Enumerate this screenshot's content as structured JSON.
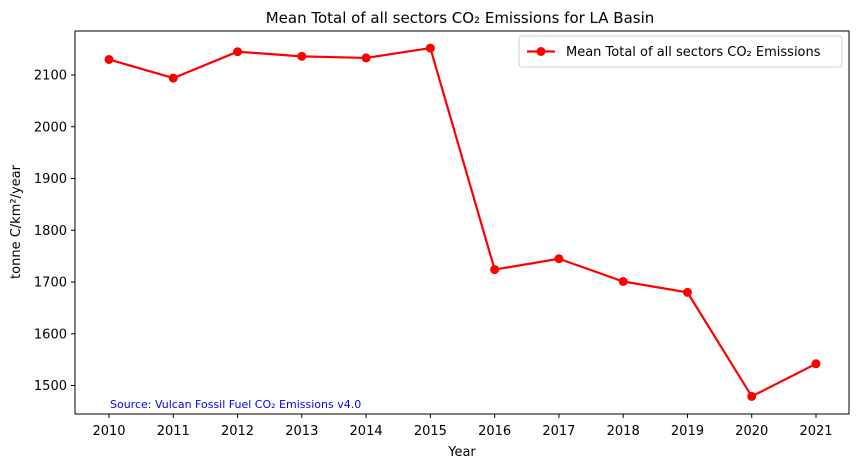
{
  "chart_data": {
    "type": "line",
    "title": "Mean Total of all sectors CO₂ Emissions for LA Basin",
    "xlabel": "Year",
    "ylabel": "tonne C/km²/year",
    "x": [
      "2010",
      "2011",
      "2012",
      "2013",
      "2014",
      "2015",
      "2016",
      "2017",
      "2018",
      "2019",
      "2020",
      "2021"
    ],
    "series": [
      {
        "name": "Mean Total of all sectors CO₂ Emissions",
        "values": [
          2130,
          2094,
          2145,
          2136,
          2133,
          2152,
          1724,
          1745,
          1701,
          1680,
          1479,
          1542
        ],
        "color": "#ff0000",
        "marker": "circle"
      }
    ],
    "ylim": [
      1445,
      2185
    ],
    "yticks": [
      1500,
      1600,
      1700,
      1800,
      1900,
      2000,
      2100
    ],
    "grid": false,
    "legend_position": "upper right",
    "annotation": {
      "text": "Source: Vulcan Fossil Fuel CO₂ Emissions v4.0",
      "color": "#0000ff"
    }
  }
}
